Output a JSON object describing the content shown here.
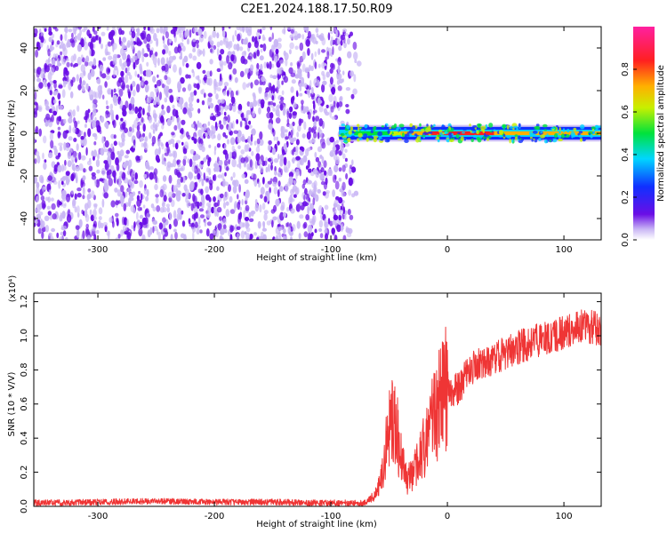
{
  "title": "C2E1.2024.188.17.50.R09",
  "colors": {
    "noise_dark": "#6a0ee6",
    "noise_light": "#c9b6f5",
    "signal_line": "#ef3535"
  },
  "colorbar": {
    "label": "Normalized spectral amplitude",
    "ticks": [
      "0.0",
      "0.2",
      "0.4",
      "0.6",
      "0.8"
    ],
    "tick_values": [
      0.0,
      0.2,
      0.4,
      0.6,
      0.8
    ],
    "range": [
      0,
      1
    ]
  },
  "chart_data": [
    {
      "type": "heatmap",
      "xlabel": "Height of straight line (km)",
      "ylabel": "Frequency (Hz)",
      "xlim": [
        -355,
        132
      ],
      "ylim": [
        -50,
        50
      ],
      "xticks": [
        -300,
        -200,
        -100,
        0,
        100
      ],
      "xtick_labels": [
        "-300",
        "-200",
        "-100",
        "0",
        "100"
      ],
      "yticks": [
        -40,
        -20,
        0,
        20,
        40
      ],
      "ytick_labels": [
        "-40",
        "-20",
        "0",
        "20",
        "40"
      ],
      "noise_region_x": [
        -355,
        -75
      ],
      "signal_band": {
        "x": [
          -93,
          132
        ],
        "frequency": 0,
        "halfwidth": 3
      },
      "signal_amplitude": [
        {
          "x": -90,
          "amp": 0.45
        },
        {
          "x": -80,
          "amp": 0.5
        },
        {
          "x": -70,
          "amp": 0.5
        },
        {
          "x": -60,
          "amp": 0.55
        },
        {
          "x": -50,
          "amp": 0.7
        },
        {
          "x": -40,
          "amp": 0.8
        },
        {
          "x": -20,
          "amp": 0.95
        },
        {
          "x": 0,
          "amp": 1.0
        },
        {
          "x": 40,
          "amp": 0.85
        },
        {
          "x": 80,
          "amp": 0.9
        },
        {
          "x": 132,
          "amp": 0.85
        }
      ]
    },
    {
      "type": "line",
      "xlabel": "Height of straight line (km)",
      "ylabel": "SNR (10 * V/V)",
      "y_multiplier": "(x10⁴)",
      "xlim": [
        -355,
        132
      ],
      "ylim": [
        0,
        12500
      ],
      "xticks": [
        -300,
        -200,
        -100,
        0,
        100
      ],
      "xtick_labels": [
        "-300",
        "-200",
        "-100",
        "0",
        "100"
      ],
      "yticks": [
        0,
        2000,
        4000,
        6000,
        8000,
        10000,
        12000
      ],
      "ytick_labels": [
        "0.0",
        "0.2",
        "0.4",
        "0.6",
        "0.8",
        "1.0",
        "1.2"
      ],
      "series": [
        {
          "x": [
            -355,
            -300,
            -250,
            -200,
            -150,
            -100,
            -70,
            -60,
            -55,
            -50,
            -45,
            -40,
            -35,
            -30,
            -25,
            -20,
            -15,
            -10,
            -5,
            0,
            5,
            10,
            20,
            30,
            40,
            60,
            80,
            100,
            115,
            132
          ],
          "y": [
            200,
            250,
            300,
            250,
            250,
            200,
            200,
            800,
            2500,
            4500,
            5000,
            3000,
            1500,
            2000,
            2500,
            3500,
            4500,
            5500,
            6500,
            7000,
            6800,
            7000,
            8000,
            8500,
            8700,
            9300,
            9800,
            10200,
            10600,
            10400
          ]
        }
      ]
    }
  ]
}
